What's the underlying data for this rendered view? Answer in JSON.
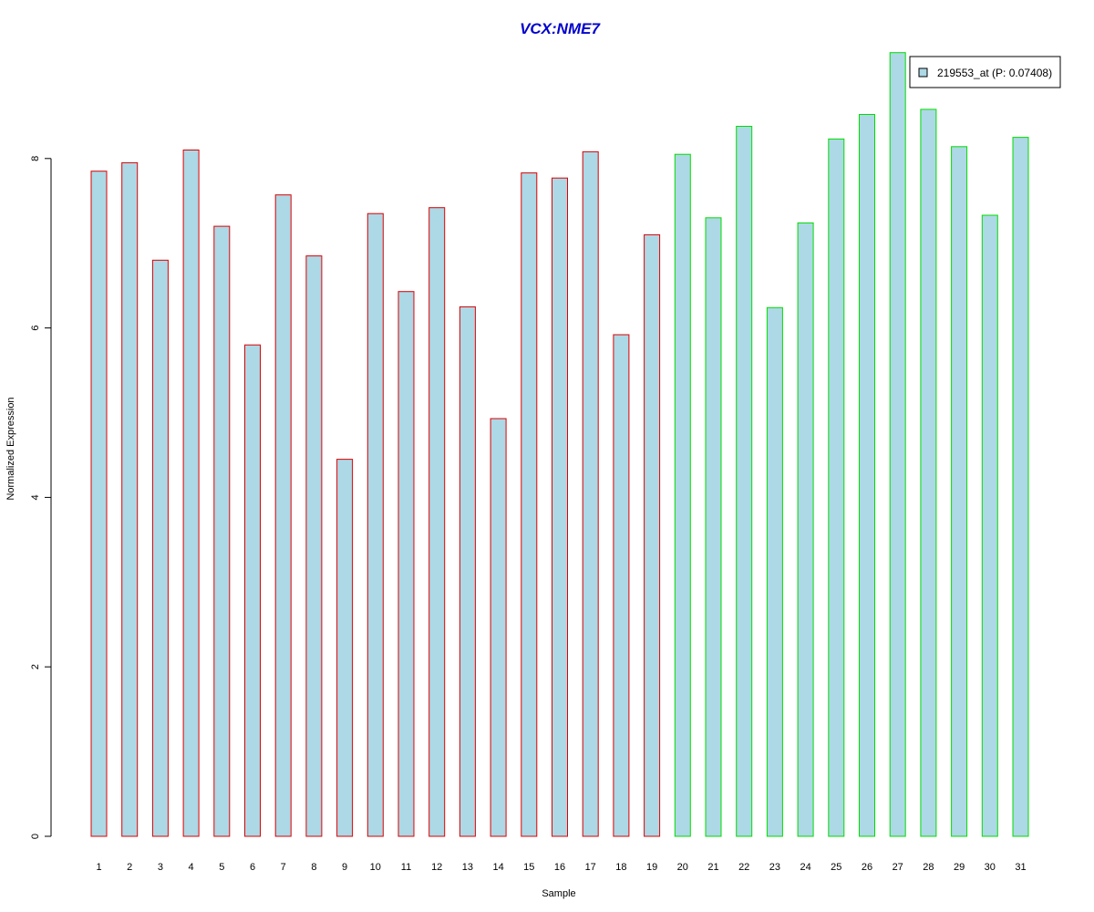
{
  "chart_data": {
    "type": "bar",
    "title": "VCX:NME7",
    "xlabel": "Sample",
    "ylabel": "Normalized Expression",
    "ylim": [
      0,
      9.3
    ],
    "yticks": [
      0,
      2,
      4,
      6,
      8
    ],
    "categories": [
      "1",
      "2",
      "3",
      "4",
      "5",
      "6",
      "7",
      "8",
      "9",
      "10",
      "11",
      "12",
      "13",
      "14",
      "15",
      "16",
      "17",
      "18",
      "19",
      "20",
      "21",
      "22",
      "23",
      "24",
      "25",
      "26",
      "27",
      "28",
      "29",
      "30",
      "31"
    ],
    "series": [
      {
        "name": "219553_at (P: 0.07408)",
        "values": [
          7.85,
          7.95,
          6.8,
          8.1,
          7.2,
          5.8,
          7.57,
          6.85,
          4.45,
          7.35,
          6.43,
          7.42,
          6.25,
          4.93,
          7.83,
          7.77,
          8.08,
          5.92,
          7.1,
          8.05,
          7.3,
          8.38,
          6.24,
          7.24,
          8.23,
          8.52,
          9.25,
          8.58,
          8.14,
          7.33,
          8.25
        ]
      }
    ],
    "groups": [
      {
        "range": [
          1,
          19
        ],
        "border_color": "#dd0000"
      },
      {
        "range": [
          20,
          31
        ],
        "border_color": "#00dd00"
      }
    ],
    "bar_fill": "#add8e6",
    "legend_position": "top-right",
    "grid": false
  }
}
